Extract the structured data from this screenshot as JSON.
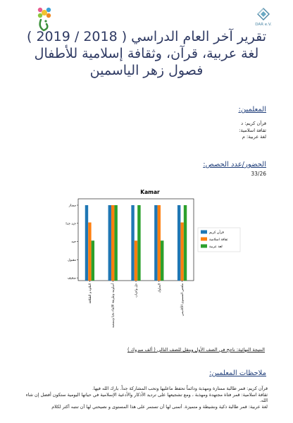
{
  "header": {
    "org_logo_text": "DAR e.V.",
    "title_lines": [
      "تقرير آخر العام الدراسي ( 2018 / 2019 )",
      "لغة عربية، قرآن، وثقافة إسلامية للأطفال",
      "فصول زهر الياسمين"
    ]
  },
  "teachers": {
    "heading": "المعلمين:",
    "rows": [
      "قرآن كريم: د",
      "ثقافة اسلامية:",
      "لغة عربية: م"
    ]
  },
  "attendance": {
    "heading": "الحضور/عدد الحصص:",
    "value": "33/26"
  },
  "chart_data": {
    "type": "bar",
    "title": "Kamar",
    "categories": [
      "التلاوة و الطلاقة",
      "أسلوبيه وطريقة الالقاء بحثا وسمعيه",
      "حل واجبات",
      "السلوك",
      "ملخص المستوى الأكاديمي"
    ],
    "y_levels": [
      "ضعيف",
      "مقبول",
      "جيد",
      "جيد جدا",
      "ممتاز"
    ],
    "ylim": [
      0,
      4
    ],
    "series": [
      {
        "name": "قرآن كريم",
        "color": "#1f77b4",
        "values": [
          4,
          4,
          4,
          4,
          4
        ]
      },
      {
        "name": "ثقافة اسلامية",
        "color": "#ff7f0e",
        "values": [
          3.05,
          4,
          2.05,
          4,
          3.05
        ]
      },
      {
        "name": "لغة عربية",
        "color": "#2ca02c",
        "values": [
          2.05,
          4,
          4,
          2.05,
          4
        ]
      }
    ],
    "legend_position": "right",
    "grid": false
  },
  "result": {
    "text": "النتيجة النهائية: ناجح في الصف الأول وينقل للصف التالي ( ألف مبروك )"
  },
  "remarks": {
    "heading": "ملاحظات المعلمين:",
    "lines": [
      "قرآن كريم: قمر طالبة ممتازة ومهذبة ودائماً تحفظ ماعليها وتحب المشاركة جداً. بارك الله فيها.",
      "ثقافة اسلامية: قمر فتاة مجتهدة ومهذبة ، ومع تشجيعها على ترديد الأذكار والأدعية الإسلامية في حياتها اليومية ستكون أفضل إن شاء الله.",
      "لغة عربية: قمر طالبة ذكية ونشيطة و متميزة. أتمنى لها أن تستمر على هذا المستوى و نصيحتي لها أن تنتبه أكثر لكلام"
    ]
  }
}
